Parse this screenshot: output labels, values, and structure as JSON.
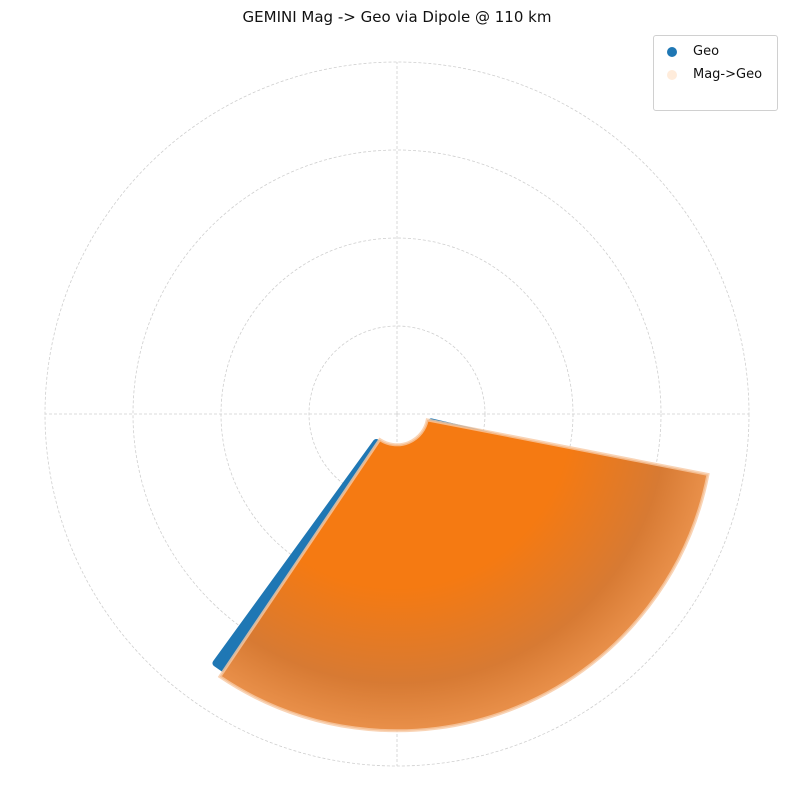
{
  "chart_data": {
    "type": "scatter",
    "projection": "polar",
    "title": "GEMINI Mag -> Geo via Dipole @ 110 km",
    "grid": true,
    "axis_labels_visible": false,
    "r_rings": [
      1,
      2,
      3,
      4
    ],
    "theta_spokes_deg": [
      0,
      90,
      180,
      270
    ],
    "legend": {
      "placement": "top-right",
      "entries": [
        {
          "name": "Geo",
          "color": "#1f77b4",
          "alpha": 1.0
        },
        {
          "name": "Mag->Geo",
          "color": "#ff7f0e",
          "alpha": 0.15
        }
      ]
    },
    "series": [
      {
        "name": "Geo",
        "color": "#1f77b4",
        "region": {
          "r_min": 0.4,
          "r_max": 3.5,
          "theta_min_deg": 234,
          "theta_max_deg": 347
        }
      },
      {
        "name": "Mag->Geo",
        "color": "#ff7f0e",
        "region": {
          "r_min": 0.35,
          "r_max": 3.6,
          "theta_min_deg": 236,
          "theta_max_deg": 349
        }
      }
    ]
  }
}
